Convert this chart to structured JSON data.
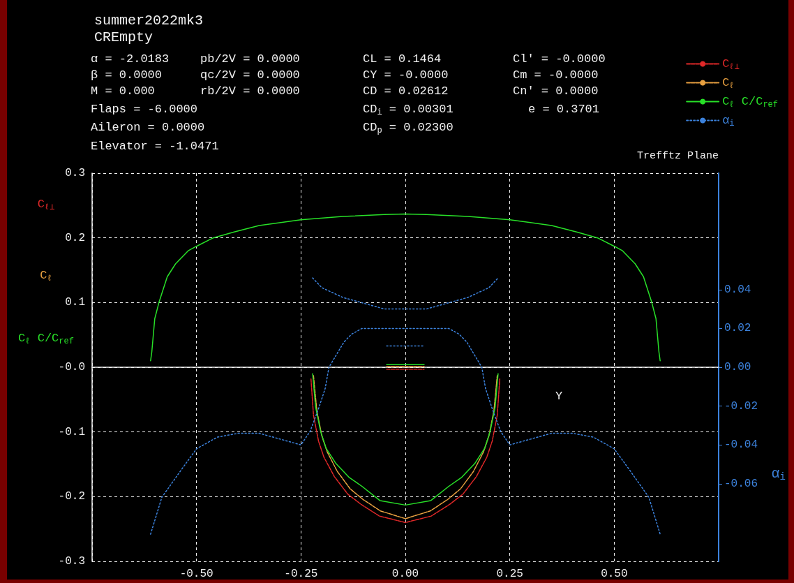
{
  "chart_data": {
    "type": "line",
    "title": "summer2022mk3",
    "subtitle": "CREmpty",
    "xlabel": "Y",
    "y2label": "α$_{i}$",
    "annotations": [
      "α = -2.0183",
      "pb/2V = 0.0000",
      "CL = 0.1464",
      "Cl' = -0.0000",
      "β = 0.0000",
      "qc/2V = 0.0000",
      "CY = -0.0000",
      "Cm = -0.0000",
      "M = 0.000",
      "rb/2V = 0.0000",
      "CD = 0.02612",
      "Cn' = 0.0000",
      "Flaps = -6.0000",
      "CD$_{i}$ = 0.00301",
      "e = 0.3701",
      "Aileron = 0.0000",
      "CD$_{p}$ = 0.02300",
      "Elevator = -1.0471",
      "Trefftz Plane"
    ],
    "xlim": [
      -0.75,
      0.75
    ],
    "xticks": [
      {
        "value": -0.75,
        "label": null
      },
      {
        "value": -0.5,
        "label": "-0.50"
      },
      {
        "value": -0.25,
        "label": "-0.25"
      },
      {
        "value": 0,
        "label": "0.00"
      },
      {
        "value": 0.25,
        "label": "0.25"
      },
      {
        "value": 0.5,
        "label": "0.50"
      },
      {
        "value": 0.75,
        "label": null
      }
    ],
    "ylim": [
      -0.3,
      0.3
    ],
    "yticks": [
      -0.3,
      -0.2,
      -0.1,
      {
        "value": 0,
        "label": "-0.0"
      },
      0.1,
      0.2,
      0.3
    ],
    "y2lim": [
      -0.1,
      0.1
    ],
    "y2ticks": [
      -0.06,
      -0.04,
      -0.02,
      {
        "value": 0,
        "label": "0.00"
      },
      0.02,
      0.04
    ],
    "grid": true,
    "legend": "top right",
    "marker": "none",
    "series": [
      {
        "name": "C$_{ℓ⊥}$",
        "color": "#e02828",
        "line_style": "dashed",
        "x": [
          -0.045,
          0,
          0.045,
          null,
          -0.226,
          -0.22,
          -0.208,
          -0.195,
          -0.17,
          -0.138,
          -0.106,
          -0.062,
          0,
          0.062,
          0.106,
          0.138,
          0.17,
          0.195,
          0.208,
          0.22,
          0.226
        ],
        "values": [
          -0.003,
          -0.003,
          -0.003,
          null,
          -0.018,
          -0.074,
          -0.114,
          -0.139,
          -0.169,
          -0.196,
          -0.212,
          -0.23,
          -0.24,
          -0.23,
          -0.212,
          -0.196,
          -0.169,
          -0.139,
          -0.114,
          -0.074,
          -0.018
        ]
      },
      {
        "name": "C$_{ℓ}$",
        "color": "#e8a040",
        "line_style": "dashed",
        "x": [
          -0.045,
          0,
          0.045,
          null,
          -0.22,
          -0.212,
          -0.2,
          -0.187,
          -0.163,
          -0.132,
          -0.102,
          -0.06,
          0,
          0.06,
          0.102,
          0.132,
          0.163,
          0.187,
          0.2,
          0.212,
          0.22
        ],
        "values": [
          0.001,
          0.001,
          0.001,
          null,
          -0.013,
          -0.067,
          -0.106,
          -0.131,
          -0.161,
          -0.188,
          -0.204,
          -0.222,
          -0.234,
          -0.222,
          -0.204,
          -0.188,
          -0.161,
          -0.131,
          -0.106,
          -0.067,
          -0.013
        ]
      },
      {
        "name": "C$_{ℓ}$ C/C$_{ref}$",
        "color": "#28e028",
        "line_style": "solid",
        "x": [
          -0.61,
          -0.607,
          -0.6,
          -0.59,
          -0.57,
          -0.55,
          -0.52,
          -0.5,
          -0.46,
          -0.41,
          -0.35,
          -0.25,
          -0.15,
          -0.05,
          0,
          0.05,
          0.15,
          0.25,
          0.35,
          0.41,
          0.46,
          0.5,
          0.52,
          0.55,
          0.57,
          0.59,
          0.6,
          0.607,
          0.61,
          null,
          -0.045,
          0,
          0.045,
          null,
          -0.222,
          -0.215,
          -0.203,
          -0.19,
          -0.166,
          -0.135,
          -0.104,
          -0.061,
          0,
          0.061,
          0.104,
          0.135,
          0.166,
          0.19,
          0.203,
          0.215,
          0.222
        ],
        "values": [
          0.01,
          0.024,
          0.075,
          0.1,
          0.14,
          0.16,
          0.18,
          0.187,
          0.2,
          0.209,
          0.219,
          0.228,
          0.233,
          0.236,
          0.237,
          0.236,
          0.233,
          0.228,
          0.219,
          0.209,
          0.2,
          0.187,
          0.18,
          0.16,
          0.14,
          0.1,
          0.075,
          0.024,
          0.01,
          null,
          0.004,
          0.004,
          0.004,
          null,
          -0.01,
          -0.061,
          -0.099,
          -0.125,
          -0.149,
          -0.17,
          -0.184,
          -0.206,
          -0.213,
          -0.206,
          -0.184,
          -0.17,
          -0.149,
          -0.125,
          -0.099,
          -0.061,
          -0.01
        ]
      },
      {
        "name": "α$_{i}$",
        "color": "#3c82dc",
        "line_style": "dotted",
        "axis": "y2",
        "x": [
          -0.61,
          -0.583,
          -0.537,
          -0.5,
          -0.45,
          -0.4,
          -0.35,
          -0.3,
          -0.25,
          -0.228,
          -0.209,
          -0.192,
          -0.183,
          -0.147,
          -0.129,
          -0.104,
          0,
          0.104,
          0.129,
          0.147,
          0.183,
          0.192,
          0.209,
          0.228,
          0.25,
          0.3,
          0.35,
          0.4,
          0.45,
          0.5,
          0.537,
          0.583,
          0.61,
          null,
          -0.222,
          -0.2,
          -0.15,
          -0.1,
          -0.05,
          0,
          0.05,
          0.1,
          0.15,
          0.2,
          0.222,
          null,
          -0.045,
          0,
          0.045
        ],
        "values": [
          -0.086,
          -0.067,
          -0.053,
          -0.042,
          -0.036,
          -0.034,
          -0.034,
          -0.037,
          -0.04,
          -0.033,
          -0.022,
          -0.011,
          0,
          0.013,
          0.017,
          0.02,
          0.02,
          0.02,
          0.017,
          0.013,
          0,
          -0.011,
          -0.022,
          -0.033,
          -0.04,
          -0.037,
          -0.034,
          -0.034,
          -0.036,
          -0.042,
          -0.053,
          -0.067,
          -0.086,
          null,
          0.046,
          0.041,
          0.036,
          0.033,
          0.03,
          0.03,
          0.03,
          0.033,
          0.036,
          0.041,
          0.046,
          null,
          0.011,
          0.011,
          0.011
        ]
      }
    ]
  }
}
